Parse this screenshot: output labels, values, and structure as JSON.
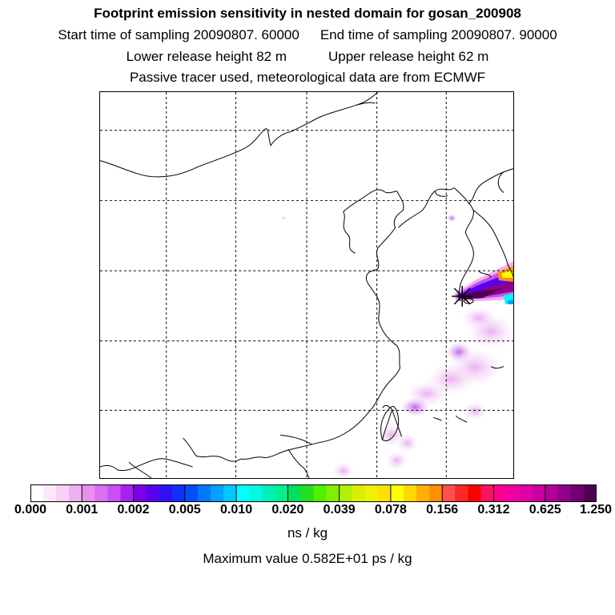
{
  "header": {
    "title": "Footprint emission sensitivity in nested domain for gosan_200908",
    "start_sampling": "Start time of sampling 20090807. 60000",
    "end_sampling": "End time of sampling 20090807. 90000",
    "lower_release": "Lower release height   82 m",
    "upper_release": "Upper release height   62 m",
    "tracer_info": "Passive tracer used, meteorological data are from ECMWF"
  },
  "chart_data": {
    "type": "heatmap",
    "title": "Footprint emission sensitivity in nested domain for gosan_200908",
    "grid": true,
    "grid_style": "dashed",
    "receptor_marker": "star",
    "colorbar": {
      "unit_label": "ns / kg",
      "tick_labels": [
        "0.000",
        "0.001",
        "0.002",
        "0.005",
        "0.010",
        "0.020",
        "0.039",
        "0.078",
        "0.156",
        "0.312",
        "0.625",
        "1.250"
      ],
      "colors": [
        "#ffffff",
        "#fce8fc",
        "#f8d0f8",
        "#f0b0f0",
        "#e890f0",
        "#d870f0",
        "#c850f0",
        "#a820f0",
        "#7a00e6",
        "#5a00f0",
        "#3010f8",
        "#1030ff",
        "#0050ff",
        "#0078ff",
        "#00a0ff",
        "#00c8ff",
        "#00ffff",
        "#00fae0",
        "#00f0b8",
        "#00f090",
        "#00e060",
        "#20e020",
        "#50f000",
        "#80f000",
        "#b0f000",
        "#d8f000",
        "#f0f000",
        "#ffe000",
        "#ffff00",
        "#ffd800",
        "#ffb000",
        "#ff9000",
        "#ff5050",
        "#ff2828",
        "#ff0000",
        "#ff1060",
        "#ff0090",
        "#f000a0",
        "#e000a8",
        "#c800a0",
        "#b0009a",
        "#900088",
        "#700070",
        "#500050"
      ]
    },
    "maximum_value_label": "Maximum value  0.582E+01 ps / kg"
  },
  "footer": {
    "unit": "ns / kg",
    "maximum": "Maximum value  0.582E+01 ps / kg"
  }
}
